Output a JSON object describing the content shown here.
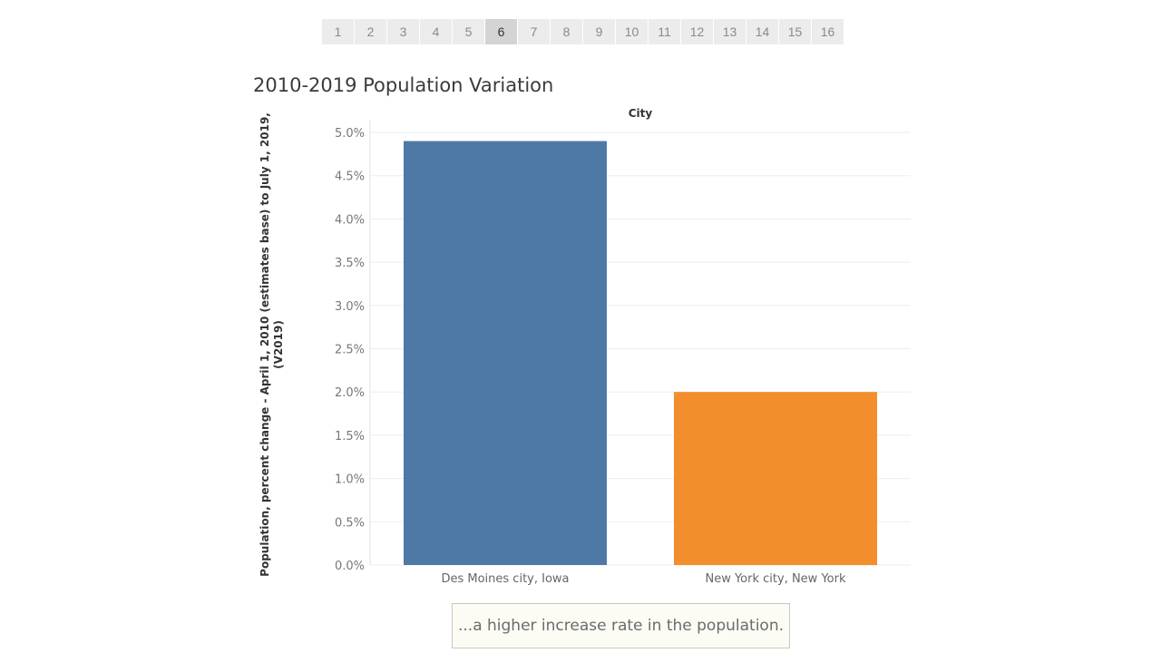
{
  "pager": {
    "pages": [
      "1",
      "2",
      "3",
      "4",
      "5",
      "6",
      "7",
      "8",
      "9",
      "10",
      "11",
      "12",
      "13",
      "14",
      "15",
      "16"
    ],
    "active": "6"
  },
  "caption": "...a higher increase rate in the population.",
  "chart_data": {
    "type": "bar",
    "title": "2010-2019 Population Variation",
    "column_header": "City",
    "ylabel": "Population, percent change - April 1, 2010 (estimates base) to July 1, 2019, (V2019)",
    "ylabel_lines": [
      "Population, percent change - April 1, 2010 (estimates base) to July 1, 2019,",
      "(V2019)"
    ],
    "categories": [
      "Des Moines city, Iowa",
      "New York city, New York"
    ],
    "values": [
      4.9,
      2.0
    ],
    "colors": [
      "#4e79a7",
      "#f28e2b"
    ],
    "ylim": [
      0,
      5.0
    ],
    "yticks": [
      0,
      0.5,
      1.0,
      1.5,
      2.0,
      2.5,
      3.0,
      3.5,
      4.0,
      4.5,
      5.0
    ],
    "ytick_labels": [
      "0.0%",
      "0.5%",
      "1.0%",
      "1.5%",
      "2.0%",
      "2.5%",
      "3.0%",
      "3.5%",
      "4.0%",
      "4.5%",
      "5.0%"
    ],
    "grid": true
  }
}
